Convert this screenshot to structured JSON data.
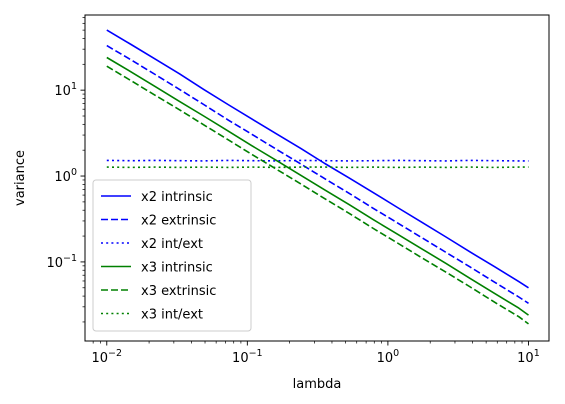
{
  "chart_data": {
    "type": "line",
    "title": "",
    "xlabel": "lambda",
    "ylabel": "variance",
    "xscale": "log",
    "yscale": "log",
    "xlim": [
      0.007,
      14
    ],
    "ylim": [
      0.012,
      75
    ],
    "x_ticks": [
      {
        "value": 0.01,
        "base": "10",
        "exp": "−2"
      },
      {
        "value": 0.1,
        "base": "10",
        "exp": "−1"
      },
      {
        "value": 1,
        "base": "10",
        "exp": "0"
      },
      {
        "value": 10,
        "base": "10",
        "exp": "1"
      }
    ],
    "y_ticks": [
      {
        "value": 0.1,
        "base": "10",
        "exp": "−1"
      },
      {
        "value": 1,
        "base": "10",
        "exp": "0"
      },
      {
        "value": 10,
        "base": "10",
        "exp": "1"
      }
    ],
    "grid": false,
    "legend_position": "lower-left",
    "x": [
      0.01,
      0.0149,
      0.0221,
      0.0329,
      0.0489,
      0.0728,
      0.108,
      0.161,
      0.24,
      0.356,
      0.53,
      0.788,
      1.17,
      1.74,
      2.59,
      3.86,
      5.74,
      8.53,
      10
    ],
    "series": [
      {
        "name": "x2 intrinsic",
        "color": "#0000ff",
        "dash": "solid",
        "values": [
          50,
          34,
          23,
          15.5,
          10.2,
          6.8,
          4.6,
          3.1,
          2.1,
          1.4,
          0.95,
          0.64,
          0.43,
          0.29,
          0.195,
          0.13,
          0.088,
          0.059,
          0.05
        ]
      },
      {
        "name": "x2 extrinsic",
        "color": "#0000ff",
        "dash": "dashed",
        "values": [
          33,
          22.5,
          15.2,
          10.2,
          6.8,
          4.5,
          3.05,
          2.05,
          1.38,
          0.93,
          0.63,
          0.42,
          0.285,
          0.192,
          0.129,
          0.087,
          0.058,
          0.039,
          0.033
        ]
      },
      {
        "name": "x2 int/ext",
        "color": "#0000ff",
        "dash": "dotted",
        "values": [
          1.52,
          1.51,
          1.52,
          1.51,
          1.5,
          1.52,
          1.51,
          1.5,
          1.52,
          1.51,
          1.5,
          1.51,
          1.52,
          1.51,
          1.5,
          1.52,
          1.51,
          1.5,
          1.5
        ]
      },
      {
        "name": "x3 intrinsic",
        "color": "#008000",
        "dash": "solid",
        "values": [
          24,
          16.3,
          11,
          7.4,
          5.0,
          3.35,
          2.25,
          1.52,
          1.02,
          0.69,
          0.465,
          0.31,
          0.21,
          0.142,
          0.096,
          0.064,
          0.043,
          0.029,
          0.024
        ]
      },
      {
        "name": "x3 extrinsic",
        "color": "#008000",
        "dash": "dashed",
        "values": [
          19,
          12.9,
          8.7,
          5.9,
          3.95,
          2.65,
          1.78,
          1.2,
          0.81,
          0.545,
          0.368,
          0.245,
          0.166,
          0.112,
          0.076,
          0.051,
          0.034,
          0.023,
          0.019
        ]
      },
      {
        "name": "x3 int/ext",
        "color": "#008000",
        "dash": "dotted",
        "values": [
          1.27,
          1.26,
          1.27,
          1.26,
          1.27,
          1.26,
          1.27,
          1.26,
          1.27,
          1.27,
          1.26,
          1.27,
          1.26,
          1.27,
          1.26,
          1.27,
          1.26,
          1.27,
          1.27
        ]
      }
    ]
  }
}
